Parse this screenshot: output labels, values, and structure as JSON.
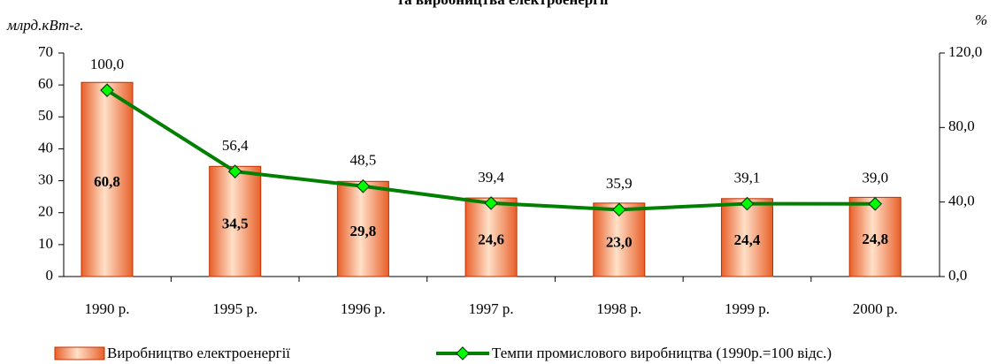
{
  "chart_data": {
    "type": "bar-line",
    "title": "та виробництва електроенергії",
    "ylabel": "млрд.кВт-г.",
    "y2label": "%",
    "categories": [
      "1990 р.",
      "1995 р.",
      "1996 р.",
      "1997 р.",
      "1998 р.",
      "1999 р.",
      "2000 р."
    ],
    "series": [
      {
        "name": "Виробництво електроенергії",
        "type": "bar",
        "color": "#f08040",
        "axis": "y",
        "values": [
          60.8,
          34.5,
          29.8,
          24.6,
          23.0,
          24.4,
          24.8
        ],
        "value_labels": [
          "60,8",
          "34,5",
          "29,8",
          "24,6",
          "23,0",
          "24,4",
          "24,8"
        ]
      },
      {
        "name": "Темпи промислового виробництва (1990р.=100 відс.)",
        "type": "line",
        "color": "#008000",
        "marker_color": "#00ff00",
        "axis": "y2",
        "values": [
          100.0,
          56.4,
          48.5,
          39.4,
          35.9,
          39.1,
          39.0
        ],
        "value_labels": [
          "100,0",
          "56,4",
          "48,5",
          "39,4",
          "35,9",
          "39,1",
          "39,0"
        ]
      }
    ],
    "ylim": [
      0,
      70
    ],
    "yticks": [
      0,
      10,
      20,
      30,
      40,
      50,
      60,
      70
    ],
    "y2lim": [
      0,
      120
    ],
    "y2ticks": [
      {
        "value": 0,
        "label": "0,0"
      },
      {
        "value": 40,
        "label": "40,0"
      },
      {
        "value": 80,
        "label": "80,0"
      },
      {
        "value": 120,
        "label": "120,0"
      }
    ]
  }
}
